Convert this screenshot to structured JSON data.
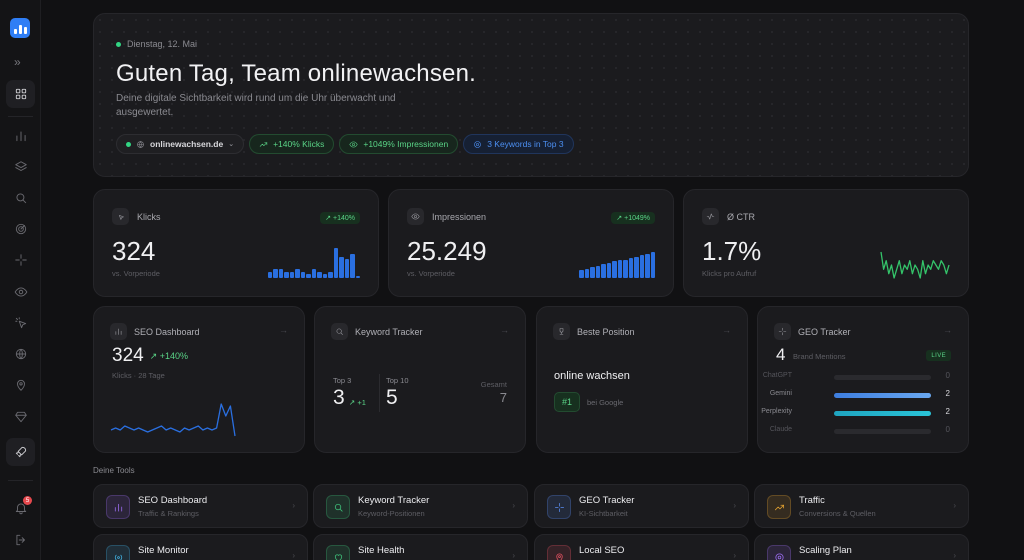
{
  "sidebar": {
    "expand_label": "»",
    "notification_count": "5"
  },
  "hero": {
    "date": "Dienstag, 12. Mai",
    "title": "Guten Tag, Team onlinewachsen.",
    "subtitle": "Deine digitale Sichtbarkeit wird rund um die Uhr überwacht und ausgewertet.",
    "domain_chip": "onlinewachsen.de",
    "chip_clicks": "+140% Klicks",
    "chip_impressions": "+1049% Impressionen",
    "chip_keywords": "3 Keywords in Top 3"
  },
  "stats": {
    "clicks": {
      "label": "Klicks",
      "badge": "+140%",
      "value": "324",
      "caption": "vs. Vorperiode",
      "bars": [
        3,
        4,
        4,
        3,
        3,
        4,
        3,
        2,
        4,
        3,
        2,
        3,
        14,
        10,
        9,
        11,
        1
      ]
    },
    "impressions": {
      "label": "Impressionen",
      "badge": "+1049%",
      "value": "25.249",
      "caption": "vs. Vorperiode",
      "bars": [
        5,
        6,
        7,
        8,
        9,
        10,
        11,
        12,
        12,
        13,
        14,
        15,
        16,
        17
      ]
    },
    "ctr": {
      "label": "Ø CTR",
      "value": "1.7%",
      "caption": "Klicks pro Aufruf",
      "series": [
        8,
        4,
        6,
        3,
        5,
        2,
        4,
        6,
        3,
        5,
        4,
        6,
        3,
        5,
        4,
        2,
        6,
        3,
        5,
        4,
        6,
        5,
        4,
        6,
        5,
        3,
        5
      ]
    }
  },
  "widgets": {
    "seo": {
      "title": "SEO Dashboard",
      "value": "324",
      "delta": "+140%",
      "caption": "Klicks · 28 Tage",
      "series": [
        5,
        6,
        5,
        7,
        6,
        5,
        6,
        5,
        4,
        5,
        6,
        7,
        5,
        6,
        5,
        4,
        6,
        5,
        6,
        7,
        5,
        6,
        5,
        6,
        18,
        12,
        17,
        2
      ]
    },
    "keywords": {
      "title": "Keyword Tracker",
      "top3_label": "Top 3",
      "top3_value": "3",
      "top3_delta": "+1",
      "top10_label": "Top 10",
      "top10_value": "5",
      "total_label": "Gesamt",
      "total_value": "7"
    },
    "position": {
      "title": "Beste Position",
      "keyword": "online wachsen",
      "rank": "#1",
      "source": "bei Google"
    },
    "geo": {
      "title": "GEO Tracker",
      "value": "4",
      "caption": "Brand Mentions",
      "live": "LIVE",
      "rows": [
        {
          "name": "ChatGPT",
          "value": 0
        },
        {
          "name": "Gemini",
          "value": 2
        },
        {
          "name": "Perplexity",
          "value": 2
        },
        {
          "name": "Claude",
          "value": 0
        }
      ]
    }
  },
  "tools_label": "Deine Tools",
  "tools": [
    {
      "name": "SEO Dashboard",
      "sub": "Traffic & Rankings",
      "icon": "bar-chart-icon",
      "color": "#9b6cf0"
    },
    {
      "name": "Keyword Tracker",
      "sub": "Keyword-Positionen",
      "icon": "search-icon",
      "color": "#3fc07a"
    },
    {
      "name": "GEO Tracker",
      "sub": "KI-Sichtbarkeit",
      "icon": "sparkle-icon",
      "color": "#5a8cf0"
    },
    {
      "name": "Traffic",
      "sub": "Conversions & Quellen",
      "icon": "trend-icon",
      "color": "#e0a030"
    },
    {
      "name": "Site Monitor",
      "sub": "",
      "icon": "radio-icon",
      "color": "#40b0e0"
    },
    {
      "name": "Site Health",
      "sub": "",
      "icon": "heart-icon",
      "color": "#3fc07a"
    },
    {
      "name": "Local SEO",
      "sub": "",
      "icon": "pin-icon",
      "color": "#e05060"
    },
    {
      "name": "Scaling Plan",
      "sub": "",
      "icon": "target-icon",
      "color": "#9b6cf0"
    }
  ]
}
